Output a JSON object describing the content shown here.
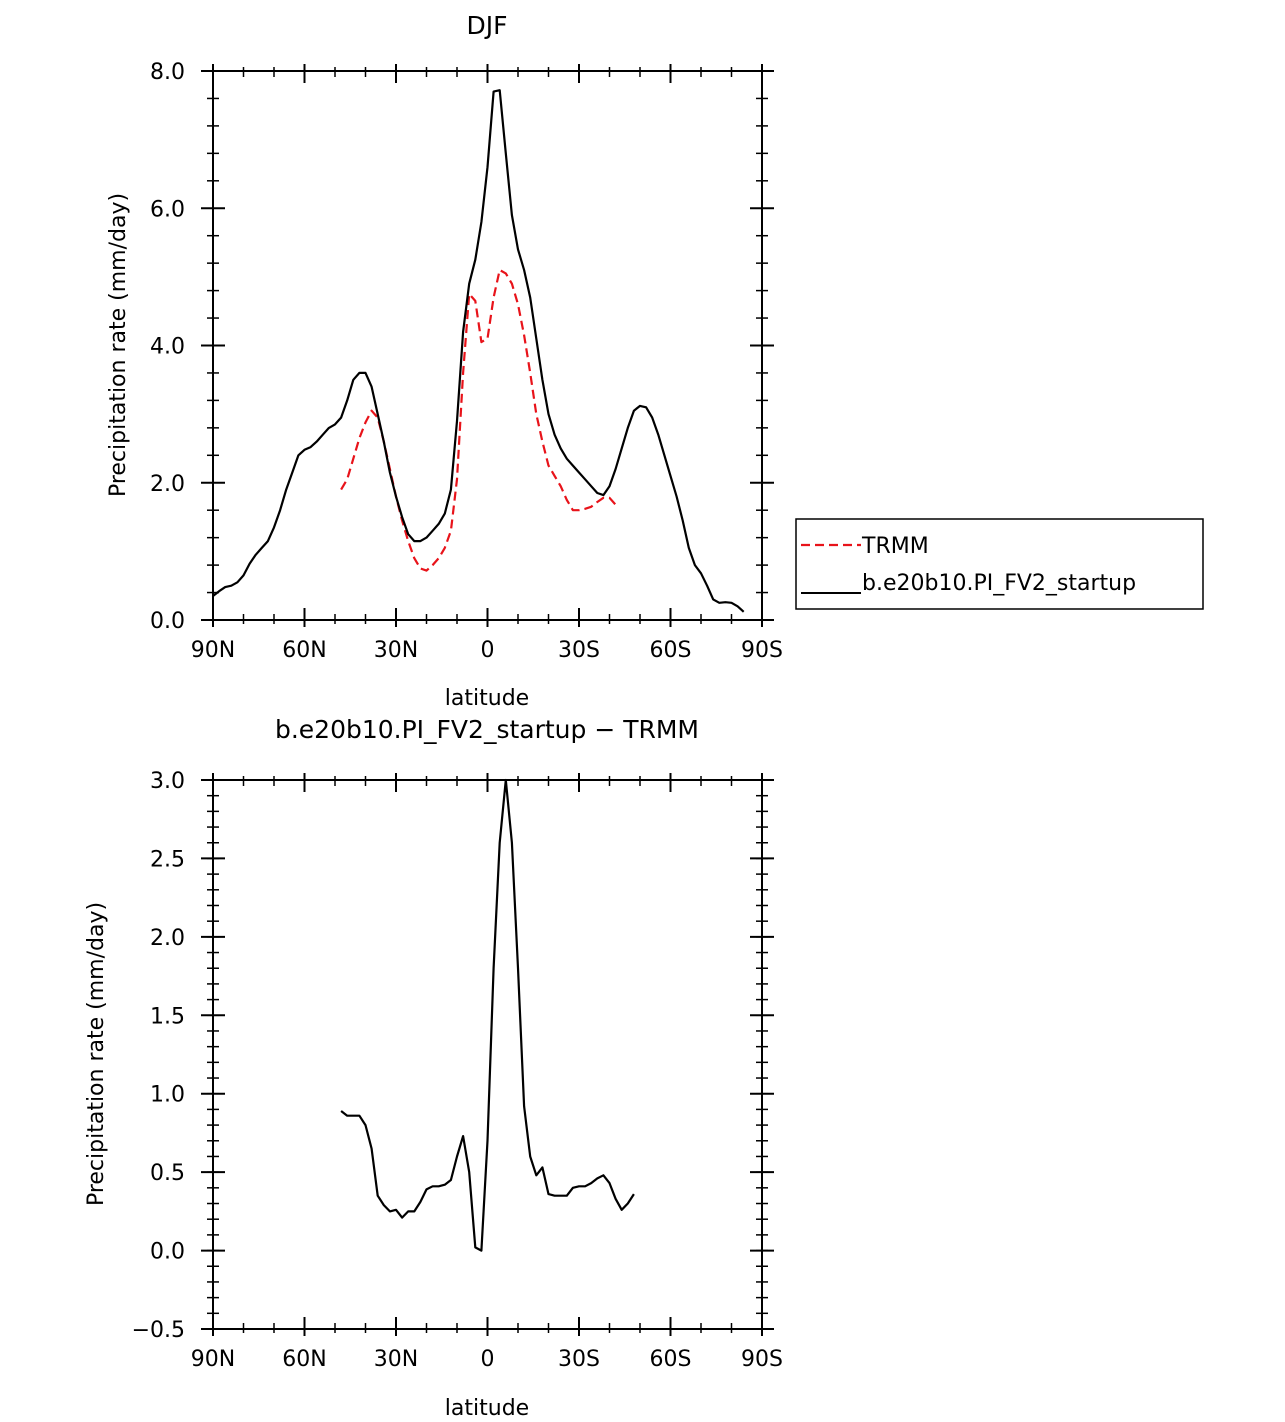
{
  "chart_data": [
    {
      "type": "line",
      "title": "DJF",
      "xlabel": "latitude",
      "ylabel": "Precipitation rate (mm/day)",
      "xlim": [
        90,
        -90
      ],
      "ylim": [
        0,
        8
      ],
      "x_ticks": [
        90,
        60,
        30,
        0,
        -30,
        -60,
        -90
      ],
      "x_tick_labels": [
        "90N",
        "60N",
        "30N",
        "0",
        "30S",
        "60S",
        "90S"
      ],
      "y_ticks": [
        0,
        2,
        4,
        6,
        8
      ],
      "y_tick_labels": [
        "0.0",
        "2.0",
        "4.0",
        "6.0",
        "8.0"
      ],
      "legend": {
        "placement": "right"
      },
      "series": [
        {
          "name": "TRMM",
          "color": "#e8131a",
          "dash": true,
          "x": [
            48,
            46,
            44,
            42,
            40,
            38,
            36,
            34,
            32,
            30,
            28,
            26,
            24,
            22,
            20,
            18,
            16,
            14,
            12,
            10,
            8,
            6,
            4,
            2,
            0,
            -2,
            -4,
            -6,
            -8,
            -10,
            -12,
            -14,
            -16,
            -18,
            -20,
            -22,
            -24,
            -26,
            -28,
            -30,
            -32,
            -34,
            -36,
            -38,
            -40,
            -42,
            -44,
            -46,
            -48
          ],
          "y": [
            1.9,
            2.05,
            2.35,
            2.65,
            2.88,
            3.05,
            2.95,
            2.6,
            2.2,
            1.8,
            1.45,
            1.15,
            0.9,
            0.75,
            0.72,
            0.8,
            0.9,
            1.05,
            1.3,
            2.05,
            3.6,
            4.75,
            4.65,
            4.05,
            4.1,
            4.7,
            5.1,
            5.05,
            4.9,
            4.6,
            4.15,
            3.6,
            3.0,
            2.6,
            2.25,
            2.1,
            1.95,
            1.75,
            1.6,
            1.6,
            1.62,
            1.65,
            1.72,
            1.78,
            1.78,
            1.68,
            null,
            null,
            null
          ]
        },
        {
          "name": "b.e20b10.PI_FV2_startup",
          "color": "#000000",
          "dash": false,
          "x": [
            90,
            88,
            86,
            84,
            82,
            80,
            78,
            76,
            74,
            72,
            70,
            68,
            66,
            64,
            62,
            60,
            58,
            56,
            54,
            52,
            50,
            48,
            46,
            44,
            42,
            40,
            38,
            36,
            34,
            32,
            30,
            28,
            26,
            24,
            22,
            20,
            18,
            16,
            14,
            12,
            10,
            8,
            6,
            4,
            2,
            0,
            -2,
            -4,
            -6,
            -8,
            -10,
            -12,
            -14,
            -16,
            -18,
            -20,
            -22,
            -24,
            -26,
            -28,
            -30,
            -32,
            -34,
            -36,
            -38,
            -40,
            -42,
            -44,
            -46,
            -48,
            -50,
            -52,
            -54,
            -56,
            -58,
            -60,
            -62,
            -64,
            -66,
            -68,
            -70,
            -72,
            -74,
            -76,
            -78,
            -80,
            -82,
            -84,
            -86,
            -88,
            -90
          ],
          "y": [
            0.35,
            0.42,
            0.48,
            0.5,
            0.55,
            0.65,
            0.82,
            0.95,
            1.05,
            1.15,
            1.35,
            1.6,
            1.9,
            2.15,
            2.4,
            2.48,
            2.52,
            2.6,
            2.7,
            2.8,
            2.85,
            2.95,
            3.2,
            3.5,
            3.6,
            3.6,
            3.4,
            3.0,
            2.6,
            2.15,
            1.8,
            1.5,
            1.25,
            1.15,
            1.15,
            1.2,
            1.3,
            1.4,
            1.55,
            1.9,
            2.9,
            4.2,
            4.9,
            5.25,
            5.8,
            6.6,
            7.7,
            7.72,
            6.8,
            5.9,
            5.4,
            5.1,
            4.7,
            4.1,
            3.5,
            3.0,
            2.7,
            2.5,
            2.35,
            2.25,
            2.15,
            2.05,
            1.95,
            1.85,
            1.82,
            1.95,
            2.2,
            2.5,
            2.8,
            3.05,
            3.12,
            3.1,
            2.95,
            2.7,
            2.4,
            2.1,
            1.8,
            1.45,
            1.05,
            0.8,
            0.68,
            0.5,
            0.3,
            0.25,
            0.26,
            0.25,
            0.2,
            0.12,
            null,
            null,
            null
          ]
        }
      ]
    },
    {
      "type": "line",
      "title": "b.e20b10.PI_FV2_startup − TRMM",
      "xlabel": "latitude",
      "ylabel": "Precipitation rate (mm/day)",
      "xlim": [
        90,
        -90
      ],
      "ylim": [
        -0.5,
        3.0
      ],
      "x_ticks": [
        90,
        60,
        30,
        0,
        -30,
        -60,
        -90
      ],
      "x_tick_labels": [
        "90N",
        "60N",
        "30N",
        "0",
        "30S",
        "60S",
        "90S"
      ],
      "y_ticks": [
        -0.5,
        0,
        0.5,
        1.0,
        1.5,
        2.0,
        2.5,
        3.0
      ],
      "y_tick_labels": [
        "−0.5",
        "0.0",
        "0.5",
        "1.0",
        "1.5",
        "2.0",
        "2.5",
        "3.0"
      ],
      "series": [
        {
          "color": "#000000",
          "dash": false,
          "x": [
            48,
            46,
            44,
            42,
            40,
            38,
            36,
            34,
            32,
            30,
            28,
            26,
            24,
            22,
            20,
            18,
            16,
            14,
            12,
            10,
            8,
            6,
            4,
            2,
            0,
            -2,
            -4,
            -6,
            -8,
            -10,
            -12,
            -14,
            -16,
            -18,
            -20,
            -22,
            -24,
            -26,
            -28,
            -30,
            -32,
            -34,
            -36,
            -38,
            -40,
            -42,
            -44,
            -46,
            -48
          ],
          "y": [
            0.89,
            0.86,
            0.86,
            0.86,
            0.8,
            0.65,
            0.35,
            0.29,
            0.25,
            0.26,
            0.21,
            0.25,
            0.25,
            0.31,
            0.39,
            0.41,
            0.41,
            0.42,
            0.45,
            0.6,
            0.73,
            0.5,
            0.02,
            0.0,
            0.7,
            1.8,
            2.6,
            3.0,
            2.6,
            1.8,
            0.92,
            0.6,
            0.48,
            0.53,
            0.36,
            0.35,
            0.35,
            0.35,
            0.4,
            0.41,
            0.41,
            0.43,
            0.46,
            0.48,
            0.43,
            0.33,
            0.26,
            0.3,
            0.36
          ]
        }
      ]
    }
  ]
}
